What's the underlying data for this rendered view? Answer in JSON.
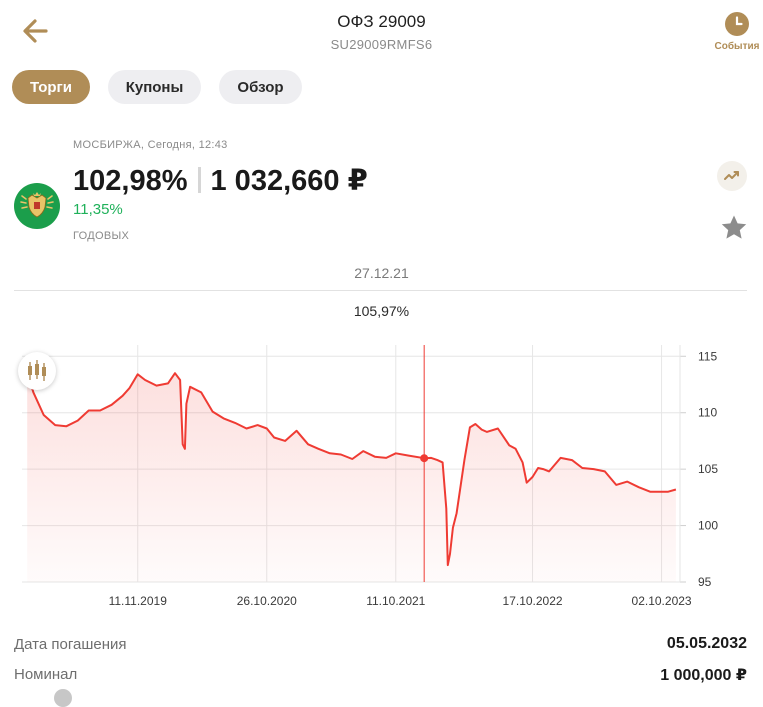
{
  "header": {
    "title": "ОФЗ 29009",
    "isin": "SU29009RMFS6",
    "back_icon": "arrow-left-icon",
    "events_label": "События",
    "events_icon": "clock-icon"
  },
  "tabs": [
    {
      "label": "Торги",
      "active": true
    },
    {
      "label": "Купоны",
      "active": false
    },
    {
      "label": "Обзор",
      "active": false
    }
  ],
  "quote": {
    "exchange_line": "МОСБИРЖА, Сегодня, 12:43",
    "price_percent": "102,98%",
    "price_rub": "1 032,660 ₽",
    "yield": "11,35%",
    "yield_label": "ГОДОВЫХ",
    "logo_icon": "russian-emblem-icon",
    "trend_icon": "trend-up-icon",
    "favorite_icon": "star-icon"
  },
  "selection": {
    "date": "27.12.21",
    "value": "105,97%"
  },
  "colors": {
    "accent": "#b08d57",
    "positive": "#1fb15a",
    "line": "#ef3b33"
  },
  "chart_data": {
    "type": "area",
    "title": "",
    "xlabel": "",
    "ylabel": "",
    "x_ticks": [
      "11.11.2019",
      "26.10.2020",
      "11.10.2021",
      "17.10.2022",
      "02.10.2023"
    ],
    "y_ticks": [
      95,
      100,
      105,
      110,
      115
    ],
    "ylim": [
      95,
      116
    ],
    "grid": true,
    "crosshair": {
      "date": "2021-12-27",
      "value": 105.97
    },
    "series": [
      {
        "dates": [
          "2019-01-15",
          "2019-02-01",
          "2019-03-01",
          "2019-04-01",
          "2019-05-01",
          "2019-06-01",
          "2019-07-01",
          "2019-08-01",
          "2019-09-01",
          "2019-10-01",
          "2019-10-20",
          "2019-11-11",
          "2019-12-01",
          "2020-01-01",
          "2020-02-01",
          "2020-02-20",
          "2020-03-05",
          "2020-03-12",
          "2020-03-18",
          "2020-03-22",
          "2020-04-01",
          "2020-05-01",
          "2020-06-01",
          "2020-07-01",
          "2020-08-01",
          "2020-09-01",
          "2020-10-01",
          "2020-10-26",
          "2020-11-15",
          "2020-12-15",
          "2021-01-15",
          "2021-02-15",
          "2021-03-15",
          "2021-04-15",
          "2021-05-15",
          "2021-06-15",
          "2021-07-15",
          "2021-08-15",
          "2021-09-15",
          "2021-10-11",
          "2021-11-15",
          "2021-12-27",
          "2022-01-15",
          "2022-02-01",
          "2022-02-15",
          "2022-02-25",
          "2022-03-01",
          "2022-03-07",
          "2022-03-15",
          "2022-03-25",
          "2022-04-15",
          "2022-04-30",
          "2022-05-15",
          "2022-06-01",
          "2022-06-15",
          "2022-07-15",
          "2022-08-15",
          "2022-09-01",
          "2022-09-20",
          "2022-10-01",
          "2022-10-17",
          "2022-11-01",
          "2022-11-15",
          "2022-12-01",
          "2023-01-01",
          "2023-02-01",
          "2023-03-01",
          "2023-04-01",
          "2023-05-01",
          "2023-06-01",
          "2023-07-01",
          "2023-08-01",
          "2023-09-01",
          "2023-10-02",
          "2023-10-20",
          "2023-11-10"
        ],
        "values": [
          113.6,
          111.8,
          109.8,
          108.9,
          108.8,
          109.3,
          110.2,
          110.2,
          110.7,
          111.5,
          112.2,
          113.4,
          112.9,
          112.4,
          112.6,
          113.5,
          112.9,
          107.2,
          106.8,
          110.8,
          112.3,
          111.8,
          110.1,
          109.5,
          109.1,
          108.6,
          108.9,
          108.6,
          107.8,
          107.5,
          108.4,
          107.2,
          106.8,
          106.4,
          106.3,
          105.9,
          106.6,
          106.1,
          106.0,
          106.4,
          106.2,
          105.97,
          106.0,
          105.8,
          105.6,
          101.5,
          96.5,
          97.5,
          99.8,
          101.1,
          105.8,
          108.7,
          109.0,
          108.5,
          108.3,
          108.6,
          107.1,
          106.8,
          105.6,
          103.8,
          104.3,
          105.1,
          105.0,
          104.8,
          106.0,
          105.8,
          105.1,
          105.0,
          104.8,
          103.6,
          103.9,
          103.4,
          103.0,
          103.0,
          103.0,
          103.2
        ]
      }
    ]
  },
  "info": [
    {
      "label": "Дата погашения",
      "value": "05.05.2032"
    },
    {
      "label": "Номинал",
      "value": "1 000,000 ₽"
    }
  ]
}
